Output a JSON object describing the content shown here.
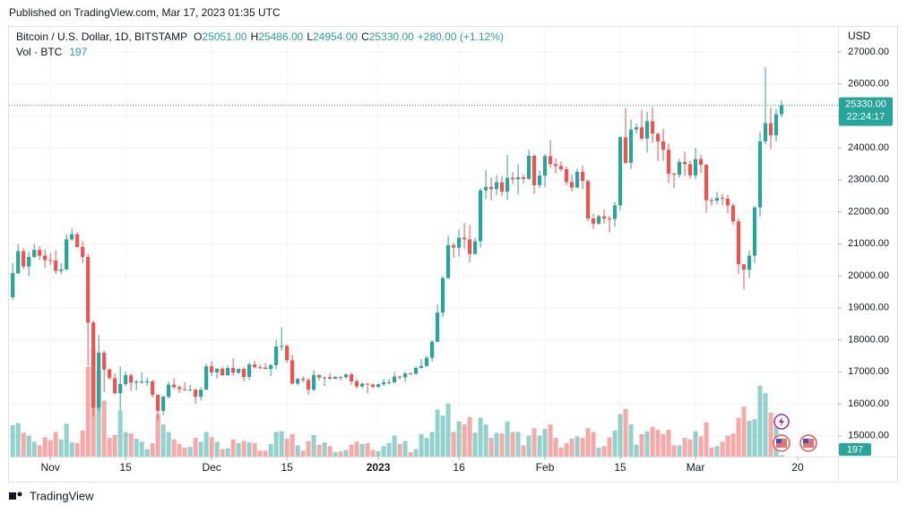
{
  "header": {
    "published": "Published on TradingView.com, Mar 17, 2023 01:35 UTC"
  },
  "footer": {
    "brand": "TradingView"
  },
  "chart_data": {
    "type": "candlestick",
    "legend": {
      "symbol": "Bitcoin / U.S. Dollar, 1D, BITSTAMP",
      "items": [
        {
          "label": "O",
          "value": "25051.00"
        },
        {
          "label": "H",
          "value": "25486.00"
        },
        {
          "label": "L",
          "value": "24954.00"
        },
        {
          "label": "C",
          "value": "25330.00"
        }
      ],
      "change": "+280.00 (+1.12%)",
      "volume_label": "Vol · BTC"
    },
    "y_axis_label": "USD",
    "up_color": "#26a69a",
    "down_color": "#ef5350",
    "grid": true,
    "xlim": [
      -0.7,
      153.5
    ],
    "xticks": [
      {
        "value": 7,
        "label": "Nov"
      },
      {
        "value": 21,
        "label": "15"
      },
      {
        "value": 37,
        "label": "Dec"
      },
      {
        "value": 51,
        "label": "15"
      },
      {
        "value": 68,
        "label": "2023"
      },
      {
        "value": 83,
        "label": "16"
      },
      {
        "value": 99,
        "label": "Feb"
      },
      {
        "value": 113,
        "label": "15"
      },
      {
        "value": 127,
        "label": "Mar"
      },
      {
        "value": 146,
        "label": "20"
      }
    ],
    "ylim": [
      14350,
      27780
    ],
    "yticks": [
      {
        "value": 15000,
        "label": "15000.00"
      },
      {
        "value": 16000,
        "label": "16000.00"
      },
      {
        "value": 17000,
        "label": "17000.00"
      },
      {
        "value": 18000,
        "label": "18000.00"
      },
      {
        "value": 19000,
        "label": "19000.00"
      },
      {
        "value": 20000,
        "label": "20000.00"
      },
      {
        "value": 21000,
        "label": "21000.00"
      },
      {
        "value": 22000,
        "label": "22000.00"
      },
      {
        "value": 23000,
        "label": "23000.00"
      },
      {
        "value": 24000,
        "label": "24000.00"
      },
      {
        "value": 25000,
        "label": "25000.00"
      },
      {
        "value": 26000,
        "label": "26000.00"
      },
      {
        "value": 27000,
        "label": "27000.00"
      }
    ],
    "last_price": {
      "value": 25330,
      "label": "25330.00"
    },
    "countdown": "22:24:17",
    "candles": [
      {
        "o": 19330,
        "h": 20400,
        "l": 19250,
        "c": 20080,
        "v": 4200
      },
      {
        "o": 20080,
        "h": 21000,
        "l": 20050,
        "c": 20770,
        "v": 4500
      },
      {
        "o": 20770,
        "h": 20860,
        "l": 20200,
        "c": 20290,
        "v": 3200
      },
      {
        "o": 20290,
        "h": 20750,
        "l": 20000,
        "c": 20590,
        "v": 2800
      },
      {
        "o": 20590,
        "h": 20990,
        "l": 20550,
        "c": 20810,
        "v": 2000
      },
      {
        "o": 20810,
        "h": 20930,
        "l": 20500,
        "c": 20630,
        "v": 1500
      },
      {
        "o": 20630,
        "h": 20820,
        "l": 20250,
        "c": 20490,
        "v": 2600
      },
      {
        "o": 20490,
        "h": 20700,
        "l": 20340,
        "c": 20480,
        "v": 2200
      },
      {
        "o": 20480,
        "h": 20800,
        "l": 20060,
        "c": 20150,
        "v": 3300
      },
      {
        "o": 20150,
        "h": 20400,
        "l": 20050,
        "c": 20200,
        "v": 2300
      },
      {
        "o": 20200,
        "h": 21300,
        "l": 20180,
        "c": 21140,
        "v": 4400
      },
      {
        "o": 21140,
        "h": 21480,
        "l": 21080,
        "c": 21300,
        "v": 1900
      },
      {
        "o": 21300,
        "h": 21360,
        "l": 20880,
        "c": 20900,
        "v": 1800
      },
      {
        "o": 20900,
        "h": 21080,
        "l": 20400,
        "c": 20590,
        "v": 3500
      },
      {
        "o": 20590,
        "h": 20680,
        "l": 17170,
        "c": 18540,
        "v": 12000
      },
      {
        "o": 18540,
        "h": 18600,
        "l": 15590,
        "c": 15880,
        "v": 14400
      },
      {
        "o": 15880,
        "h": 18150,
        "l": 15770,
        "c": 17600,
        "v": 11500
      },
      {
        "o": 17600,
        "h": 17660,
        "l": 16350,
        "c": 17070,
        "v": 7500
      },
      {
        "o": 17070,
        "h": 17100,
        "l": 16760,
        "c": 16800,
        "v": 2500
      },
      {
        "o": 16800,
        "h": 16950,
        "l": 16300,
        "c": 16330,
        "v": 2900
      },
      {
        "o": 16330,
        "h": 17170,
        "l": 15800,
        "c": 16620,
        "v": 6200
      },
      {
        "o": 16620,
        "h": 17000,
        "l": 16550,
        "c": 16890,
        "v": 3300
      },
      {
        "o": 16890,
        "h": 16960,
        "l": 16400,
        "c": 16660,
        "v": 3100
      },
      {
        "o": 16660,
        "h": 16750,
        "l": 16420,
        "c": 16690,
        "v": 2400
      },
      {
        "o": 16690,
        "h": 16990,
        "l": 16620,
        "c": 16700,
        "v": 2000
      },
      {
        "o": 16700,
        "h": 16810,
        "l": 16560,
        "c": 16700,
        "v": 1000
      },
      {
        "o": 16700,
        "h": 16750,
        "l": 16200,
        "c": 16280,
        "v": 1800
      },
      {
        "o": 16280,
        "h": 16300,
        "l": 15470,
        "c": 15780,
        "v": 5700
      },
      {
        "o": 15780,
        "h": 16250,
        "l": 15640,
        "c": 16220,
        "v": 4300
      },
      {
        "o": 16220,
        "h": 16690,
        "l": 16170,
        "c": 16600,
        "v": 3300
      },
      {
        "o": 16600,
        "h": 16800,
        "l": 16460,
        "c": 16520,
        "v": 2300
      },
      {
        "o": 16520,
        "h": 16570,
        "l": 16340,
        "c": 16460,
        "v": 1700
      },
      {
        "o": 16460,
        "h": 16680,
        "l": 16400,
        "c": 16440,
        "v": 1200
      },
      {
        "o": 16440,
        "h": 16590,
        "l": 16400,
        "c": 16440,
        "v": 1300
      },
      {
        "o": 16440,
        "h": 16480,
        "l": 16000,
        "c": 16220,
        "v": 2500
      },
      {
        "o": 16220,
        "h": 16520,
        "l": 16100,
        "c": 16440,
        "v": 2000
      },
      {
        "o": 16440,
        "h": 17250,
        "l": 16440,
        "c": 17170,
        "v": 3300
      },
      {
        "o": 17170,
        "h": 17330,
        "l": 16870,
        "c": 16980,
        "v": 2600
      },
      {
        "o": 16980,
        "h": 17100,
        "l": 16790,
        "c": 17100,
        "v": 2000
      },
      {
        "o": 17100,
        "h": 17150,
        "l": 16880,
        "c": 16890,
        "v": 1000
      },
      {
        "o": 16890,
        "h": 17200,
        "l": 16880,
        "c": 17120,
        "v": 1100
      },
      {
        "o": 17120,
        "h": 17420,
        "l": 16880,
        "c": 16970,
        "v": 2300
      },
      {
        "o": 16970,
        "h": 17100,
        "l": 16920,
        "c": 17090,
        "v": 1800
      },
      {
        "o": 17090,
        "h": 17140,
        "l": 16700,
        "c": 16840,
        "v": 2100
      },
      {
        "o": 16840,
        "h": 17300,
        "l": 16740,
        "c": 17230,
        "v": 1900
      },
      {
        "o": 17230,
        "h": 17350,
        "l": 17100,
        "c": 17140,
        "v": 1800
      },
      {
        "o": 17140,
        "h": 17230,
        "l": 17090,
        "c": 17130,
        "v": 800
      },
      {
        "o": 17130,
        "h": 17270,
        "l": 17080,
        "c": 17090,
        "v": 800
      },
      {
        "o": 17090,
        "h": 17240,
        "l": 16870,
        "c": 17210,
        "v": 1700
      },
      {
        "o": 17210,
        "h": 18000,
        "l": 17080,
        "c": 17790,
        "v": 3300
      },
      {
        "o": 17790,
        "h": 18390,
        "l": 17660,
        "c": 17810,
        "v": 3400
      },
      {
        "o": 17810,
        "h": 17850,
        "l": 17280,
        "c": 17360,
        "v": 2400
      },
      {
        "o": 17360,
        "h": 17530,
        "l": 16600,
        "c": 16630,
        "v": 3000
      },
      {
        "o": 16630,
        "h": 16800,
        "l": 16580,
        "c": 16780,
        "v": 1500
      },
      {
        "o": 16780,
        "h": 16860,
        "l": 16670,
        "c": 16740,
        "v": 800
      },
      {
        "o": 16740,
        "h": 16810,
        "l": 16280,
        "c": 16440,
        "v": 2100
      },
      {
        "o": 16440,
        "h": 17050,
        "l": 16400,
        "c": 16900,
        "v": 2900
      },
      {
        "o": 16900,
        "h": 16910,
        "l": 16730,
        "c": 16820,
        "v": 1600
      },
      {
        "o": 16820,
        "h": 16850,
        "l": 16560,
        "c": 16830,
        "v": 1900
      },
      {
        "o": 16830,
        "h": 16950,
        "l": 16760,
        "c": 16780,
        "v": 1400
      },
      {
        "o": 16780,
        "h": 16860,
        "l": 16770,
        "c": 16840,
        "v": 600
      },
      {
        "o": 16840,
        "h": 16860,
        "l": 16730,
        "c": 16830,
        "v": 700
      },
      {
        "o": 16830,
        "h": 16940,
        "l": 16790,
        "c": 16920,
        "v": 900
      },
      {
        "o": 16920,
        "h": 16970,
        "l": 16590,
        "c": 16700,
        "v": 1600
      },
      {
        "o": 16700,
        "h": 16780,
        "l": 16470,
        "c": 16540,
        "v": 2000
      },
      {
        "o": 16540,
        "h": 16660,
        "l": 16490,
        "c": 16630,
        "v": 1700
      },
      {
        "o": 16630,
        "h": 16650,
        "l": 16330,
        "c": 16600,
        "v": 1800
      },
      {
        "o": 16600,
        "h": 16630,
        "l": 16480,
        "c": 16530,
        "v": 900
      },
      {
        "o": 16530,
        "h": 16630,
        "l": 16500,
        "c": 16610,
        "v": 700
      },
      {
        "o": 16610,
        "h": 16780,
        "l": 16550,
        "c": 16670,
        "v": 1400
      },
      {
        "o": 16670,
        "h": 16770,
        "l": 16610,
        "c": 16670,
        "v": 1800
      },
      {
        "o": 16670,
        "h": 17000,
        "l": 16650,
        "c": 16850,
        "v": 2800
      },
      {
        "o": 16850,
        "h": 16880,
        "l": 16760,
        "c": 16830,
        "v": 1700
      },
      {
        "o": 16830,
        "h": 17000,
        "l": 16680,
        "c": 16950,
        "v": 2100
      },
      {
        "o": 16950,
        "h": 16980,
        "l": 16910,
        "c": 16940,
        "v": 600
      },
      {
        "o": 16940,
        "h": 17170,
        "l": 16910,
        "c": 17120,
        "v": 1000
      },
      {
        "o": 17120,
        "h": 17400,
        "l": 17100,
        "c": 17180,
        "v": 3000
      },
      {
        "o": 17180,
        "h": 17500,
        "l": 17160,
        "c": 17440,
        "v": 2500
      },
      {
        "o": 17440,
        "h": 17990,
        "l": 17320,
        "c": 17940,
        "v": 3300
      },
      {
        "o": 17940,
        "h": 19100,
        "l": 17920,
        "c": 18850,
        "v": 6300
      },
      {
        "o": 18850,
        "h": 19990,
        "l": 18720,
        "c": 19930,
        "v": 5500
      },
      {
        "o": 19930,
        "h": 21250,
        "l": 19900,
        "c": 20960,
        "v": 7100
      },
      {
        "o": 20960,
        "h": 21030,
        "l": 20560,
        "c": 20880,
        "v": 3300
      },
      {
        "o": 20880,
        "h": 21450,
        "l": 20600,
        "c": 21190,
        "v": 4700
      },
      {
        "o": 21190,
        "h": 21650,
        "l": 20850,
        "c": 21140,
        "v": 4300
      },
      {
        "o": 21140,
        "h": 21600,
        "l": 20420,
        "c": 20680,
        "v": 5300
      },
      {
        "o": 20680,
        "h": 21190,
        "l": 20670,
        "c": 21080,
        "v": 3200
      },
      {
        "o": 21080,
        "h": 22740,
        "l": 20880,
        "c": 22670,
        "v": 5200
      },
      {
        "o": 22670,
        "h": 23300,
        "l": 22400,
        "c": 22780,
        "v": 4300
      },
      {
        "o": 22780,
        "h": 23070,
        "l": 22350,
        "c": 22710,
        "v": 2500
      },
      {
        "o": 22710,
        "h": 23150,
        "l": 22520,
        "c": 22920,
        "v": 3200
      },
      {
        "o": 22920,
        "h": 23120,
        "l": 22500,
        "c": 22630,
        "v": 3100
      },
      {
        "o": 22630,
        "h": 23780,
        "l": 22370,
        "c": 23060,
        "v": 4700
      },
      {
        "o": 23060,
        "h": 23250,
        "l": 22860,
        "c": 23020,
        "v": 3300
      },
      {
        "o": 23020,
        "h": 23480,
        "l": 22550,
        "c": 23080,
        "v": 3300
      },
      {
        "o": 23080,
        "h": 23170,
        "l": 22880,
        "c": 23030,
        "v": 1500
      },
      {
        "o": 23030,
        "h": 23940,
        "l": 22990,
        "c": 23750,
        "v": 2800
      },
      {
        "o": 23750,
        "h": 23790,
        "l": 22560,
        "c": 22830,
        "v": 3800
      },
      {
        "o": 22830,
        "h": 23290,
        "l": 22740,
        "c": 23130,
        "v": 2800
      },
      {
        "o": 23130,
        "h": 23800,
        "l": 22770,
        "c": 23740,
        "v": 3700
      },
      {
        "o": 23740,
        "h": 24240,
        "l": 23370,
        "c": 23490,
        "v": 4300
      },
      {
        "o": 23490,
        "h": 23670,
        "l": 23200,
        "c": 23430,
        "v": 2500
      },
      {
        "o": 23430,
        "h": 23580,
        "l": 23270,
        "c": 23330,
        "v": 1200
      },
      {
        "o": 23330,
        "h": 23420,
        "l": 22820,
        "c": 22930,
        "v": 1800
      },
      {
        "o": 22930,
        "h": 23160,
        "l": 22640,
        "c": 22760,
        "v": 2400
      },
      {
        "o": 22760,
        "h": 23350,
        "l": 22740,
        "c": 23250,
        "v": 2700
      },
      {
        "o": 23250,
        "h": 23450,
        "l": 22700,
        "c": 22960,
        "v": 2500
      },
      {
        "o": 22960,
        "h": 23010,
        "l": 21700,
        "c": 21790,
        "v": 3800
      },
      {
        "o": 21790,
        "h": 21930,
        "l": 21460,
        "c": 21630,
        "v": 3300
      },
      {
        "o": 21630,
        "h": 21900,
        "l": 21600,
        "c": 21860,
        "v": 1200
      },
      {
        "o": 21860,
        "h": 22080,
        "l": 21630,
        "c": 21790,
        "v": 1400
      },
      {
        "o": 21790,
        "h": 21880,
        "l": 21360,
        "c": 21780,
        "v": 2600
      },
      {
        "o": 21780,
        "h": 22300,
        "l": 21530,
        "c": 22200,
        "v": 3500
      },
      {
        "o": 22200,
        "h": 24370,
        "l": 22050,
        "c": 24330,
        "v": 5700
      },
      {
        "o": 24330,
        "h": 25250,
        "l": 23500,
        "c": 23530,
        "v": 6400
      },
      {
        "o": 23530,
        "h": 24880,
        "l": 23340,
        "c": 24570,
        "v": 4300
      },
      {
        "o": 24570,
        "h": 24760,
        "l": 24450,
        "c": 24640,
        "v": 1600
      },
      {
        "o": 24640,
        "h": 25190,
        "l": 24230,
        "c": 24290,
        "v": 3000
      },
      {
        "o": 24290,
        "h": 25120,
        "l": 23850,
        "c": 24830,
        "v": 3400
      },
      {
        "o": 24830,
        "h": 25280,
        "l": 24150,
        "c": 24440,
        "v": 4000
      },
      {
        "o": 24440,
        "h": 24470,
        "l": 23580,
        "c": 24200,
        "v": 3600
      },
      {
        "o": 24200,
        "h": 24600,
        "l": 23600,
        "c": 23940,
        "v": 3000
      },
      {
        "o": 23940,
        "h": 24130,
        "l": 22890,
        "c": 23190,
        "v": 3600
      },
      {
        "o": 23190,
        "h": 23230,
        "l": 22740,
        "c": 23160,
        "v": 1500
      },
      {
        "o": 23160,
        "h": 23650,
        "l": 23070,
        "c": 23560,
        "v": 1500
      },
      {
        "o": 23560,
        "h": 23880,
        "l": 23110,
        "c": 23490,
        "v": 2500
      },
      {
        "o": 23490,
        "h": 23600,
        "l": 23040,
        "c": 23140,
        "v": 2300
      },
      {
        "o": 23140,
        "h": 24000,
        "l": 23030,
        "c": 23650,
        "v": 3400
      },
      {
        "o": 23650,
        "h": 23780,
        "l": 23210,
        "c": 23470,
        "v": 2700
      },
      {
        "o": 23470,
        "h": 23480,
        "l": 21970,
        "c": 22360,
        "v": 4600
      },
      {
        "o": 22360,
        "h": 22430,
        "l": 22190,
        "c": 22350,
        "v": 1200
      },
      {
        "o": 22350,
        "h": 22620,
        "l": 22230,
        "c": 22430,
        "v": 1400
      },
      {
        "o": 22430,
        "h": 22560,
        "l": 22210,
        "c": 22410,
        "v": 2000
      },
      {
        "o": 22410,
        "h": 22530,
        "l": 21940,
        "c": 22200,
        "v": 2800
      },
      {
        "o": 22200,
        "h": 22270,
        "l": 21590,
        "c": 21700,
        "v": 3100
      },
      {
        "o": 21700,
        "h": 21800,
        "l": 20060,
        "c": 20360,
        "v": 5200
      },
      {
        "o": 20360,
        "h": 20370,
        "l": 19580,
        "c": 20190,
        "v": 6700
      },
      {
        "o": 20190,
        "h": 20800,
        "l": 19920,
        "c": 20630,
        "v": 4800
      },
      {
        "o": 20630,
        "h": 22170,
        "l": 20400,
        "c": 22140,
        "v": 5000
      },
      {
        "o": 22140,
        "h": 24500,
        "l": 21840,
        "c": 24200,
        "v": 9500
      },
      {
        "o": 24200,
        "h": 26520,
        "l": 24100,
        "c": 24770,
        "v": 8500
      },
      {
        "o": 24770,
        "h": 25250,
        "l": 23960,
        "c": 24390,
        "v": 5900
      },
      {
        "o": 24390,
        "h": 25210,
        "l": 24200,
        "c": 25050,
        "v": 4000
      },
      {
        "o": 25051,
        "h": 25486,
        "l": 24954,
        "c": 25330,
        "v": 197
      }
    ]
  }
}
